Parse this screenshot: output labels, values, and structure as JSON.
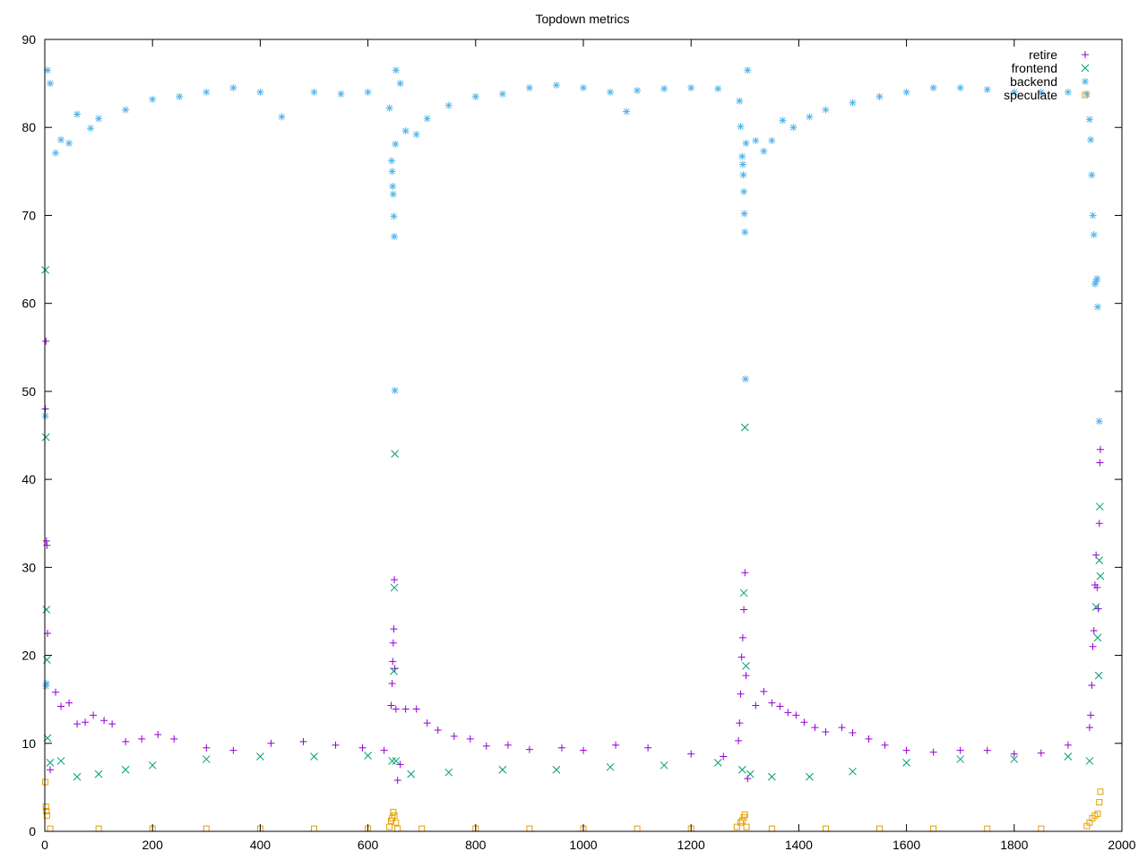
{
  "chart_data": {
    "type": "scatter",
    "title": "Topdown metrics",
    "xlabel": "",
    "ylabel": "",
    "xlim": [
      0,
      2000
    ],
    "ylim": [
      0,
      90
    ],
    "xticks": [
      0,
      200,
      400,
      600,
      800,
      1000,
      1200,
      1400,
      1600,
      1800,
      2000
    ],
    "yticks": [
      0,
      10,
      20,
      30,
      40,
      50,
      60,
      70,
      80,
      90
    ],
    "grid": false,
    "legend_position": "top-right",
    "series": [
      {
        "name": "retire",
        "marker": "plus",
        "color": "#9400d3",
        "points": [
          [
            1,
            48
          ],
          [
            2,
            55.7
          ],
          [
            3,
            33
          ],
          [
            4,
            32.5
          ],
          [
            5,
            22.5
          ],
          [
            10,
            7
          ],
          [
            20,
            15.8
          ],
          [
            30,
            14.2
          ],
          [
            45,
            14.6
          ],
          [
            60,
            12.2
          ],
          [
            75,
            12.4
          ],
          [
            90,
            13.2
          ],
          [
            110,
            12.6
          ],
          [
            125,
            12.2
          ],
          [
            150,
            10.2
          ],
          [
            180,
            10.5
          ],
          [
            210,
            11
          ],
          [
            240,
            10.5
          ],
          [
            300,
            9.5
          ],
          [
            350,
            9.2
          ],
          [
            420,
            10
          ],
          [
            480,
            10.2
          ],
          [
            540,
            9.8
          ],
          [
            590,
            9.5
          ],
          [
            630,
            9.2
          ],
          [
            643,
            14.3
          ],
          [
            645,
            16.8
          ],
          [
            646,
            19.3
          ],
          [
            647,
            21.4
          ],
          [
            648,
            23
          ],
          [
            649,
            28.6
          ],
          [
            650,
            18.5
          ],
          [
            652,
            13.9
          ],
          [
            655,
            5.8
          ],
          [
            660,
            7.6
          ],
          [
            670,
            13.9
          ],
          [
            690,
            13.9
          ],
          [
            710,
            12.3
          ],
          [
            730,
            11.5
          ],
          [
            760,
            10.8
          ],
          [
            790,
            10.5
          ],
          [
            820,
            9.7
          ],
          [
            860,
            9.8
          ],
          [
            900,
            9.3
          ],
          [
            960,
            9.5
          ],
          [
            1000,
            9.2
          ],
          [
            1060,
            9.8
          ],
          [
            1120,
            9.5
          ],
          [
            1200,
            8.8
          ],
          [
            1260,
            8.5
          ],
          [
            1288,
            10.3
          ],
          [
            1290,
            12.3
          ],
          [
            1292,
            15.6
          ],
          [
            1294,
            19.8
          ],
          [
            1296,
            22
          ],
          [
            1298,
            25.2
          ],
          [
            1300,
            29.4
          ],
          [
            1302,
            17.7
          ],
          [
            1305,
            6
          ],
          [
            1320,
            14.3
          ],
          [
            1335,
            15.9
          ],
          [
            1350,
            14.6
          ],
          [
            1365,
            14.2
          ],
          [
            1380,
            13.5
          ],
          [
            1395,
            13.2
          ],
          [
            1410,
            12.4
          ],
          [
            1430,
            11.8
          ],
          [
            1450,
            11.3
          ],
          [
            1480,
            11.8
          ],
          [
            1500,
            11.2
          ],
          [
            1530,
            10.5
          ],
          [
            1560,
            9.8
          ],
          [
            1600,
            9.2
          ],
          [
            1650,
            9
          ],
          [
            1700,
            9.2
          ],
          [
            1750,
            9.2
          ],
          [
            1800,
            8.8
          ],
          [
            1850,
            8.9
          ],
          [
            1900,
            9.8
          ],
          [
            1940,
            11.8
          ],
          [
            1942,
            13.2
          ],
          [
            1944,
            16.6
          ],
          [
            1946,
            21
          ],
          [
            1948,
            22.8
          ],
          [
            1950,
            28
          ],
          [
            1952,
            31.4
          ],
          [
            1954,
            27.7
          ],
          [
            1956,
            25.3
          ],
          [
            1958,
            35
          ],
          [
            1959,
            41.9
          ],
          [
            1960,
            43.4
          ]
        ]
      },
      {
        "name": "frontend",
        "marker": "cross",
        "color": "#009e73",
        "points": [
          [
            1,
            63.8
          ],
          [
            2,
            44.8
          ],
          [
            3,
            25.2
          ],
          [
            4,
            19.5
          ],
          [
            5,
            10.6
          ],
          [
            10,
            7.8
          ],
          [
            30,
            8
          ],
          [
            60,
            6.2
          ],
          [
            100,
            6.5
          ],
          [
            150,
            7
          ],
          [
            200,
            7.5
          ],
          [
            300,
            8.2
          ],
          [
            400,
            8.5
          ],
          [
            500,
            8.5
          ],
          [
            600,
            8.6
          ],
          [
            645,
            8
          ],
          [
            648,
            18.2
          ],
          [
            649,
            27.7
          ],
          [
            650,
            42.9
          ],
          [
            652,
            8
          ],
          [
            680,
            6.5
          ],
          [
            750,
            6.7
          ],
          [
            850,
            7
          ],
          [
            950,
            7
          ],
          [
            1050,
            7.3
          ],
          [
            1150,
            7.5
          ],
          [
            1250,
            7.8
          ],
          [
            1295,
            7
          ],
          [
            1298,
            27.1
          ],
          [
            1300,
            45.9
          ],
          [
            1302,
            18.8
          ],
          [
            1310,
            6.5
          ],
          [
            1350,
            6.2
          ],
          [
            1420,
            6.2
          ],
          [
            1500,
            6.8
          ],
          [
            1600,
            7.8
          ],
          [
            1700,
            8.2
          ],
          [
            1800,
            8.2
          ],
          [
            1900,
            8.5
          ],
          [
            1940,
            8
          ],
          [
            1952,
            25.5
          ],
          [
            1955,
            22
          ],
          [
            1957,
            17.7
          ],
          [
            1958,
            30.8
          ],
          [
            1959,
            36.9
          ],
          [
            1960,
            29
          ]
        ]
      },
      {
        "name": "backend",
        "marker": "star",
        "color": "#56b4e9",
        "points": [
          [
            1,
            47.2
          ],
          [
            2,
            16.5
          ],
          [
            3,
            16.8
          ],
          [
            5,
            86.5
          ],
          [
            10,
            85
          ],
          [
            20,
            77.1
          ],
          [
            30,
            78.6
          ],
          [
            45,
            78.2
          ],
          [
            60,
            81.5
          ],
          [
            85,
            79.9
          ],
          [
            100,
            81
          ],
          [
            150,
            82
          ],
          [
            200,
            83.2
          ],
          [
            250,
            83.5
          ],
          [
            300,
            84
          ],
          [
            350,
            84.5
          ],
          [
            400,
            84
          ],
          [
            440,
            81.2
          ],
          [
            500,
            84
          ],
          [
            550,
            83.8
          ],
          [
            600,
            84
          ],
          [
            640,
            82.2
          ],
          [
            644,
            76.2
          ],
          [
            645,
            75
          ],
          [
            646,
            73.3
          ],
          [
            647,
            72.4
          ],
          [
            648,
            69.9
          ],
          [
            649,
            67.6
          ],
          [
            650,
            50.1
          ],
          [
            651,
            78.1
          ],
          [
            652,
            86.5
          ],
          [
            660,
            85
          ],
          [
            670,
            79.6
          ],
          [
            690,
            79.2
          ],
          [
            710,
            81
          ],
          [
            750,
            82.5
          ],
          [
            800,
            83.5
          ],
          [
            850,
            83.8
          ],
          [
            900,
            84.5
          ],
          [
            950,
            84.8
          ],
          [
            1000,
            84.5
          ],
          [
            1050,
            84
          ],
          [
            1080,
            81.8
          ],
          [
            1100,
            84.2
          ],
          [
            1150,
            84.4
          ],
          [
            1200,
            84.5
          ],
          [
            1250,
            84.4
          ],
          [
            1290,
            83
          ],
          [
            1292,
            80.1
          ],
          [
            1295,
            76.7
          ],
          [
            1296,
            75.8
          ],
          [
            1297,
            74.6
          ],
          [
            1298,
            72.7
          ],
          [
            1299,
            70.2
          ],
          [
            1300,
            68.1
          ],
          [
            1301,
            51.4
          ],
          [
            1302,
            78.2
          ],
          [
            1305,
            86.5
          ],
          [
            1320,
            78.5
          ],
          [
            1335,
            77.3
          ],
          [
            1350,
            78.5
          ],
          [
            1370,
            80.8
          ],
          [
            1390,
            80
          ],
          [
            1420,
            81.2
          ],
          [
            1450,
            82
          ],
          [
            1500,
            82.8
          ],
          [
            1550,
            83.5
          ],
          [
            1600,
            84
          ],
          [
            1650,
            84.5
          ],
          [
            1700,
            84.5
          ],
          [
            1750,
            84.3
          ],
          [
            1800,
            84
          ],
          [
            1850,
            84
          ],
          [
            1900,
            84
          ],
          [
            1935,
            83.8
          ],
          [
            1940,
            80.9
          ],
          [
            1942,
            78.6
          ],
          [
            1944,
            74.6
          ],
          [
            1946,
            70
          ],
          [
            1948,
            67.8
          ],
          [
            1950,
            62.2
          ],
          [
            1952,
            62.5
          ],
          [
            1954,
            62.8
          ],
          [
            1955,
            59.6
          ],
          [
            1958,
            46.6
          ]
        ]
      },
      {
        "name": "speculate",
        "marker": "square",
        "color": "#e69f00",
        "points": [
          [
            1,
            5.6
          ],
          [
            2,
            2.8
          ],
          [
            3,
            2.3
          ],
          [
            4,
            1.8
          ],
          [
            10,
            0.3
          ],
          [
            100,
            0.3
          ],
          [
            200,
            0.3
          ],
          [
            300,
            0.3
          ],
          [
            400,
            0.3
          ],
          [
            500,
            0.3
          ],
          [
            600,
            0.3
          ],
          [
            640,
            0.5
          ],
          [
            643,
            1.2
          ],
          [
            645,
            1.5
          ],
          [
            647,
            2.2
          ],
          [
            649,
            1.8
          ],
          [
            652,
            1
          ],
          [
            655,
            0.3
          ],
          [
            700,
            0.3
          ],
          [
            800,
            0.3
          ],
          [
            900,
            0.3
          ],
          [
            1000,
            0.3
          ],
          [
            1100,
            0.3
          ],
          [
            1200,
            0.3
          ],
          [
            1285,
            0.5
          ],
          [
            1292,
            1
          ],
          [
            1295,
            1.2
          ],
          [
            1298,
            1.6
          ],
          [
            1300,
            1.9
          ],
          [
            1303,
            0.5
          ],
          [
            1350,
            0.3
          ],
          [
            1450,
            0.3
          ],
          [
            1550,
            0.3
          ],
          [
            1650,
            0.3
          ],
          [
            1750,
            0.3
          ],
          [
            1850,
            0.3
          ],
          [
            1935,
            0.6
          ],
          [
            1940,
            1
          ],
          [
            1945,
            1.5
          ],
          [
            1950,
            1.8
          ],
          [
            1955,
            2
          ],
          [
            1958,
            3.3
          ],
          [
            1960,
            4.5
          ]
        ]
      }
    ]
  }
}
